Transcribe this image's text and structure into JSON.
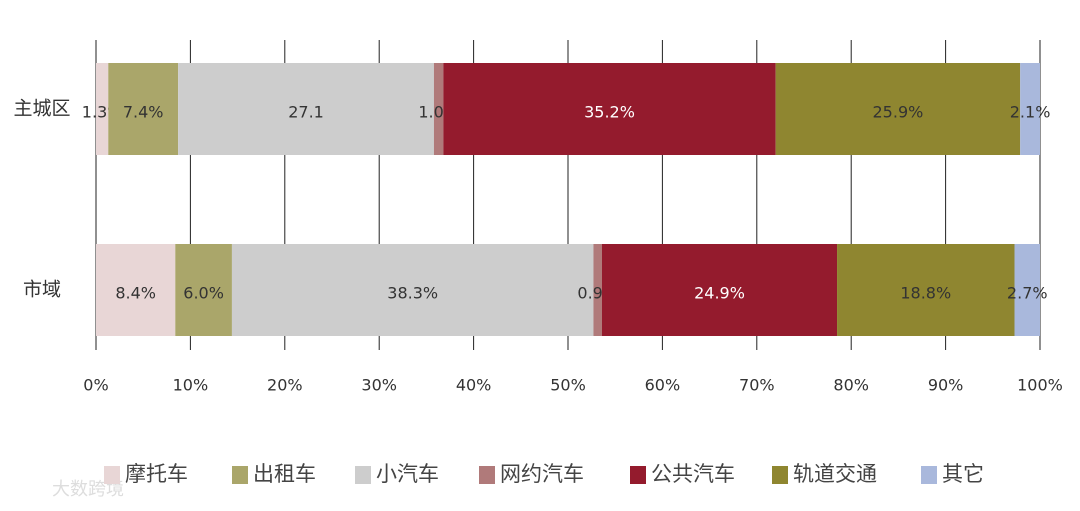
{
  "chart_data": {
    "type": "stacked-barh",
    "categories": [
      "主城区",
      "市域"
    ],
    "series": [
      {
        "name": "摩托车",
        "color": "#e8d6d6",
        "values": [
          1.3,
          8.4
        ],
        "value_labels": [
          "1.3%",
          "8.4%"
        ]
      },
      {
        "name": "出租车",
        "color": "#aaa66a",
        "values": [
          7.4,
          6.0
        ],
        "value_labels": [
          "7.4%",
          "6.0%"
        ]
      },
      {
        "name": "小汽车",
        "color": "#cdcdcd",
        "values": [
          27.1,
          38.3
        ],
        "value_labels": [
          "27.1",
          "38.3%"
        ]
      },
      {
        "name": "网约汽车",
        "color": "#b07a7a",
        "values": [
          1.0,
          0.9
        ],
        "value_labels": [
          "1.0%",
          "0.9%"
        ]
      },
      {
        "name": "公共汽车",
        "color": "#941b2d",
        "values": [
          35.2,
          24.9
        ],
        "value_labels": [
          "35.2%",
          "24.9%"
        ]
      },
      {
        "name": "轨道交通",
        "color": "#8f8630",
        "values": [
          25.9,
          18.8
        ],
        "value_labels": [
          "25.9%",
          "18.8%"
        ]
      },
      {
        "name": "其它",
        "color": "#a9b8dc",
        "values": [
          2.1,
          2.7
        ],
        "value_labels": [
          "2.1%",
          "2.7%"
        ]
      }
    ],
    "xlim": [
      0,
      100
    ],
    "xticks": [
      {
        "value": 0,
        "label": "0%"
      },
      {
        "value": 10,
        "label": "10%"
      },
      {
        "value": 20,
        "label": "20%"
      },
      {
        "value": 30,
        "label": "30%"
      },
      {
        "value": 40,
        "label": "40%"
      },
      {
        "value": 50,
        "label": "50%"
      },
      {
        "value": 60,
        "label": "60%"
      },
      {
        "value": 70,
        "label": "70%"
      },
      {
        "value": 80,
        "label": "80%"
      },
      {
        "value": 90,
        "label": "90%"
      },
      {
        "value": 100,
        "label": "100%"
      }
    ],
    "grid": true,
    "legend": "bottom",
    "watermark": "大数跨境"
  }
}
